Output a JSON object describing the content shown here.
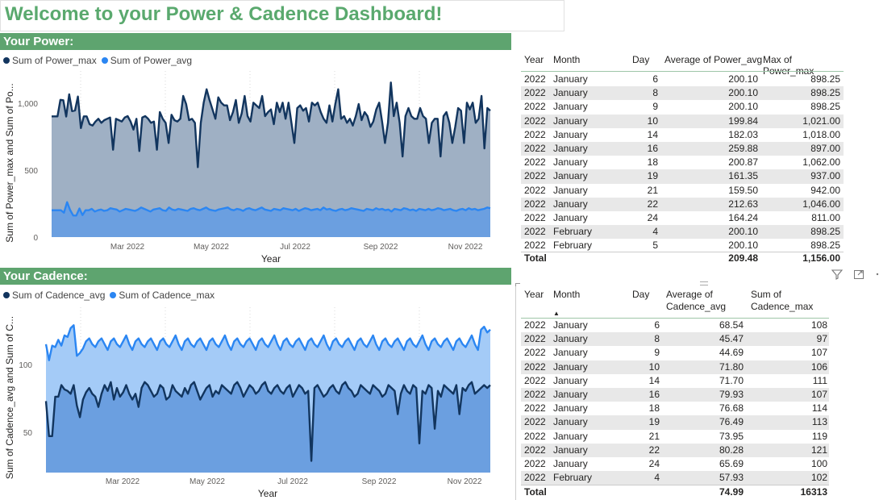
{
  "title": "Welcome to your Power & Cadence Dashboard!",
  "power_section": "Your Power:",
  "cadence_section": "Your Cadence:",
  "colors": {
    "dark": "#12355e",
    "light": "#2b86f2",
    "section_green": "#5ea46f",
    "title_green": "#5aa96e"
  },
  "power_chart": {
    "legend": [
      {
        "label": "Sum of Power_max",
        "color": "#12355e"
      },
      {
        "label": "Sum of Power_avg",
        "color": "#2b86f2"
      }
    ],
    "ylabel": "Sum of Power_max and Sum of Po...",
    "xlabel": "Year",
    "y_ticks": [
      "0",
      "500",
      "1,000"
    ],
    "x_ticks": [
      "Mar 2022",
      "May 2022",
      "Jul 2022",
      "Sep 2022",
      "Nov 2022"
    ]
  },
  "cadence_chart": {
    "legend": [
      {
        "label": "Sum of Cadence_avg",
        "color": "#12355e"
      },
      {
        "label": "Sum of Cadence_max",
        "color": "#2b86f2"
      }
    ],
    "ylabel": "Sum of Cadence_avg and Sum of C...",
    "xlabel": "Year",
    "y_ticks": [
      "50",
      "100"
    ],
    "x_ticks": [
      "Mar 2022",
      "May 2022",
      "Jul 2022",
      "Sep 2022",
      "Nov 2022"
    ]
  },
  "power_table": {
    "headers": [
      "Year",
      "Month",
      "Day",
      "Average of Power_avg",
      "Max of Power_max"
    ],
    "rows": [
      [
        "2022",
        "January",
        "6",
        "200.10",
        "898.25"
      ],
      [
        "2022",
        "January",
        "8",
        "200.10",
        "898.25"
      ],
      [
        "2022",
        "January",
        "9",
        "200.10",
        "898.25"
      ],
      [
        "2022",
        "January",
        "10",
        "199.84",
        "1,021.00"
      ],
      [
        "2022",
        "January",
        "14",
        "182.03",
        "1,018.00"
      ],
      [
        "2022",
        "January",
        "16",
        "259.88",
        "897.00"
      ],
      [
        "2022",
        "January",
        "18",
        "200.87",
        "1,062.00"
      ],
      [
        "2022",
        "January",
        "19",
        "161.35",
        "937.00"
      ],
      [
        "2022",
        "January",
        "21",
        "159.50",
        "942.00"
      ],
      [
        "2022",
        "January",
        "22",
        "212.63",
        "1,046.00"
      ],
      [
        "2022",
        "January",
        "24",
        "164.24",
        "811.00"
      ],
      [
        "2022",
        "February",
        "4",
        "200.10",
        "898.25"
      ],
      [
        "2022",
        "February",
        "5",
        "200.10",
        "898.25"
      ]
    ],
    "total_label": "Total",
    "total_avg": "209.48",
    "total_max": "1,156.00"
  },
  "cadence_table": {
    "headers": [
      "Year",
      "Month",
      "Day",
      "Average of Cadence_avg",
      "Sum of Cadence_max"
    ],
    "rows": [
      [
        "2022",
        "January",
        "6",
        "68.54",
        "108"
      ],
      [
        "2022",
        "January",
        "8",
        "45.47",
        "97"
      ],
      [
        "2022",
        "January",
        "9",
        "44.69",
        "107"
      ],
      [
        "2022",
        "January",
        "10",
        "71.80",
        "106"
      ],
      [
        "2022",
        "January",
        "14",
        "71.70",
        "111"
      ],
      [
        "2022",
        "January",
        "16",
        "79.93",
        "107"
      ],
      [
        "2022",
        "January",
        "18",
        "76.68",
        "114"
      ],
      [
        "2022",
        "January",
        "19",
        "76.49",
        "113"
      ],
      [
        "2022",
        "January",
        "21",
        "73.95",
        "119"
      ],
      [
        "2022",
        "January",
        "22",
        "80.28",
        "121"
      ],
      [
        "2022",
        "January",
        "24",
        "65.69",
        "100"
      ],
      [
        "2022",
        "February",
        "4",
        "57.93",
        "102"
      ]
    ],
    "total_label": "Total",
    "total_avg": "74.99",
    "total_max": "16313"
  },
  "chart_data": [
    {
      "type": "area",
      "xlabel": "Year",
      "ylabel": "Sum of Power_max and Sum of Po...",
      "ylim": [
        0,
        1200
      ],
      "x_tick_labels": [
        "Mar 2022",
        "May 2022",
        "Jul 2022",
        "Sep 2022",
        "Nov 2022"
      ],
      "x_range": [
        "2022-01-06",
        "2022-11-29"
      ],
      "legend": "top-left",
      "series": [
        {
          "name": "Sum of Power_max",
          "color": "#12355e",
          "values": [
            898,
            898,
            898,
            1021,
            1018,
            897,
            1062,
            937,
            942,
            1046,
            811,
            898,
            898,
            840,
            830,
            860,
            880,
            850,
            870,
            880,
            890,
            650,
            880,
            870,
            860,
            890,
            900,
            860,
            800,
            880,
            640,
            890,
            900,
            880,
            850,
            860,
            650,
            930,
            880,
            850,
            700,
            910,
            870,
            860,
            880,
            1050,
            990,
            870,
            880,
            850,
            520,
            850,
            1000,
            1100,
            1020,
            950,
            880,
            1040,
            1000,
            980,
            980,
            870,
            930,
            1020,
            850,
            920,
            1050,
            900,
            860,
            1000,
            980,
            960,
            1050,
            900,
            930,
            950,
            840,
            1000,
            930,
            1000,
            880,
            1000,
            850,
            700,
            960,
            980,
            940,
            960,
            860,
            1000,
            980,
            1000,
            930,
            880,
            850,
            980,
            860,
            990,
            1100,
            880,
            900,
            850,
            880,
            830,
            900,
            990,
            870,
            930,
            900,
            820,
            860,
            950,
            1000,
            860,
            700,
            850,
            1150,
            900,
            1000,
            850,
            600,
            900,
            960,
            900,
            880,
            880,
            960,
            900,
            880,
            700,
            850,
            880,
            880,
            600,
            900,
            930,
            850,
            700,
            820,
            960,
            940,
            700,
            1000,
            950,
            1000,
            850,
            880,
            1050,
            660,
            960,
            940
          ]
        },
        {
          "name": "Sum of Power_avg",
          "color": "#2b86f2",
          "values": [
            200,
            200,
            200,
            200,
            182,
            260,
            201,
            161,
            160,
            213,
            164,
            200,
            200,
            210,
            190,
            200,
            205,
            195,
            200,
            215,
            210,
            205,
            190,
            200,
            210,
            205,
            200,
            195,
            205,
            220,
            210,
            200,
            190,
            205,
            210,
            215,
            200,
            195,
            220,
            205,
            200,
            210,
            205,
            200,
            195,
            210,
            215,
            205,
            200,
            210,
            220,
            205,
            200,
            195,
            205,
            210,
            215,
            220,
            205,
            200,
            210,
            205,
            195,
            210,
            215,
            205,
            200,
            210,
            220,
            205,
            200,
            195,
            210,
            205,
            200,
            215,
            210,
            205,
            200,
            210,
            195,
            205,
            215,
            210,
            200,
            205,
            210,
            200,
            220,
            205,
            210,
            200,
            195,
            205,
            210,
            200,
            205,
            215,
            210,
            205,
            200,
            195,
            210,
            205,
            200,
            215,
            205,
            210,
            200,
            205,
            190,
            210,
            205,
            200,
            215,
            210,
            200,
            205,
            195,
            210,
            205,
            200,
            210,
            200,
            205,
            215,
            210,
            200,
            205,
            210,
            200,
            195,
            205,
            210,
            200,
            215,
            205,
            210,
            200,
            205,
            210,
            220,
            215
          ]
        }
      ]
    },
    {
      "type": "area",
      "xlabel": "Year",
      "ylabel": "Sum of Cadence_avg and Sum of C...",
      "ylim": [
        20,
        130
      ],
      "x_tick_labels": [
        "Mar 2022",
        "May 2022",
        "Jul 2022",
        "Sep 2022",
        "Nov 2022"
      ],
      "x_range": [
        "2022-01-06",
        "2022-11-29"
      ],
      "legend": "top-left",
      "series": [
        {
          "name": "Sum of Cadence_avg",
          "color": "#12355e",
          "values": [
            69,
            45,
            45,
            72,
            72,
            80,
            77,
            76,
            74,
            80,
            66,
            58,
            70,
            75,
            78,
            74,
            72,
            65,
            74,
            80,
            76,
            82,
            70,
            78,
            72,
            75,
            80,
            74,
            70,
            74,
            65,
            78,
            82,
            80,
            76,
            72,
            74,
            80,
            78,
            70,
            72,
            80,
            76,
            74,
            72,
            78,
            74,
            80,
            82,
            76,
            70,
            74,
            78,
            80,
            72,
            76,
            74,
            80,
            78,
            76,
            74,
            80,
            82,
            78,
            72,
            76,
            80,
            78,
            74,
            76,
            80,
            82,
            76,
            74,
            78,
            80,
            76,
            74,
            78,
            80,
            72,
            76,
            80,
            78,
            74,
            76,
            28,
            78,
            80,
            76,
            72,
            74,
            78,
            80,
            76,
            74,
            80,
            82,
            78,
            76,
            72,
            74,
            80,
            78,
            76,
            74,
            80,
            78,
            76,
            72,
            74,
            80,
            78,
            76,
            60,
            74,
            80,
            76,
            74,
            80,
            78,
            40,
            76,
            74,
            80,
            78,
            50,
            76,
            72,
            80,
            78,
            76,
            74,
            80,
            60,
            78,
            76,
            80,
            82,
            74,
            76,
            78,
            80,
            78,
            80
          ]
        },
        {
          "name": "Sum of Cadence_max",
          "color": "#2b86f2",
          "values": [
            108,
            97,
            107,
            106,
            111,
            107,
            114,
            113,
            119,
            121,
            100,
            102,
            105,
            110,
            112,
            108,
            106,
            110,
            112,
            108,
            104,
            110,
            112,
            108,
            106,
            110,
            114,
            108,
            104,
            110,
            112,
            108,
            106,
            110,
            112,
            108,
            104,
            110,
            112,
            108,
            106,
            110,
            114,
            108,
            104,
            110,
            112,
            108,
            106,
            110,
            112,
            108,
            104,
            110,
            112,
            108,
            106,
            110,
            114,
            108,
            104,
            110,
            112,
            108,
            106,
            110,
            112,
            108,
            104,
            110,
            112,
            108,
            106,
            110,
            114,
            108,
            104,
            110,
            112,
            108,
            106,
            110,
            112,
            108,
            104,
            110,
            112,
            108,
            106,
            110,
            114,
            108,
            104,
            110,
            112,
            108,
            106,
            110,
            112,
            108,
            104,
            110,
            112,
            108,
            106,
            110,
            114,
            108,
            104,
            110,
            112,
            108,
            106,
            110,
            112,
            108,
            104,
            110,
            112,
            108,
            106,
            110,
            114,
            108,
            104,
            110,
            112,
            108,
            106,
            110,
            112,
            108,
            104,
            110,
            112,
            108,
            106,
            110,
            114,
            108,
            104,
            118,
            120,
            116,
            118
          ]
        }
      ]
    }
  ]
}
